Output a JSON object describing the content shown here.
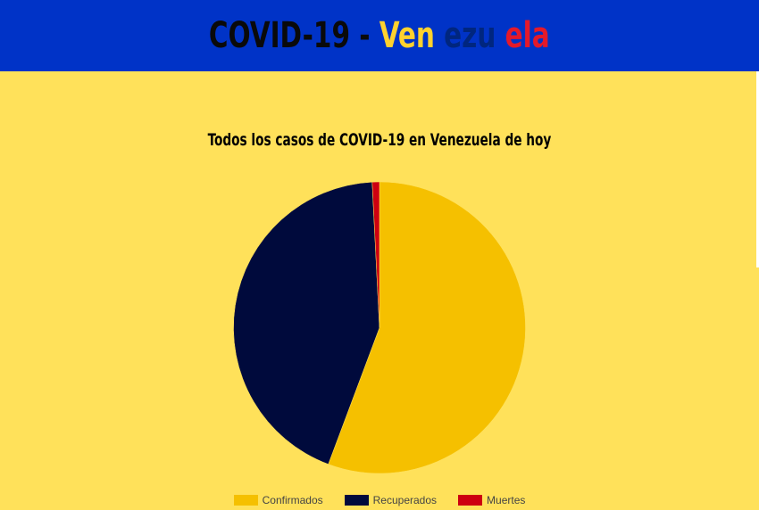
{
  "header": {
    "prefix": "COVID-19 - ",
    "part1": "Ven",
    "part2": "ezu",
    "part3": "ela",
    "prefix_color": "#0a0a0a",
    "part1_color": "#FFD22E",
    "part2_color": "#00267F",
    "part3_color": "#E4192A",
    "background": "#0033C7"
  },
  "chart_data": {
    "type": "pie",
    "title": "Todos los casos de COVID-19 en Venezuela de hoy",
    "categories": [
      "Confirmados",
      "Recuperados",
      "Muertes"
    ],
    "values": [
      55.7,
      43.5,
      0.8
    ],
    "colors": [
      "#F5C000",
      "#000A3C",
      "#CD0010"
    ],
    "legend_position": "bottom"
  },
  "background_color": "#FFE15A"
}
